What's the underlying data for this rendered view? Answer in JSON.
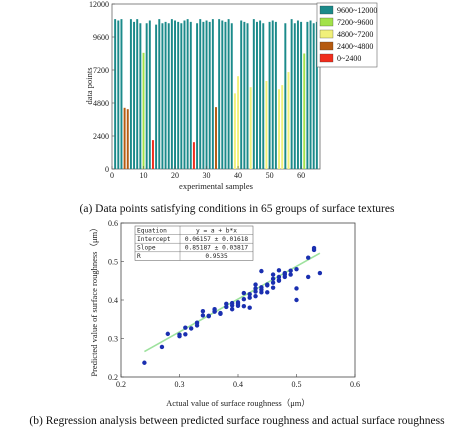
{
  "chart_data": [
    {
      "type": "bar",
      "ylabel": "data points",
      "xlabel": "experimental samples",
      "ylim": [
        0,
        12000
      ],
      "xlim": [
        0,
        66
      ],
      "yticks": [
        "0",
        "2400",
        "4800",
        "7200",
        "9600",
        "12000"
      ],
      "xticks": [
        "0",
        "10",
        "20",
        "30",
        "40",
        "50",
        "60"
      ],
      "legend_position": "top-right",
      "legend": [
        {
          "label": "9600~12000",
          "color": "#1b8a8a"
        },
        {
          "label": "7200~9600",
          "color": "#a2e24a"
        },
        {
          "label": "4800~7200",
          "color": "#f1f07a"
        },
        {
          "label": "2400~4800",
          "color": "#b55a10"
        },
        {
          "label": "0~2400",
          "color": "#f02d1d"
        }
      ],
      "x": [
        1,
        2,
        3,
        4,
        5,
        6,
        7,
        8,
        9,
        10,
        11,
        12,
        13,
        14,
        15,
        16,
        17,
        18,
        19,
        20,
        21,
        22,
        23,
        24,
        25,
        26,
        27,
        28,
        29,
        30,
        31,
        32,
        33,
        34,
        35,
        36,
        37,
        38,
        39,
        40,
        41,
        42,
        43,
        44,
        45,
        46,
        47,
        48,
        49,
        50,
        51,
        52,
        53,
        54,
        55,
        56,
        57,
        58,
        59,
        60,
        61,
        62,
        63,
        64,
        65
      ],
      "values": [
        10900,
        10800,
        10900,
        4450,
        4350,
        10900,
        10700,
        10900,
        10600,
        8450,
        10600,
        10800,
        2100,
        10500,
        10900,
        10600,
        10700,
        10600,
        10900,
        10800,
        10700,
        10600,
        10800,
        10900,
        10700,
        1950,
        10600,
        10900,
        10700,
        10800,
        10700,
        10900,
        4500,
        10900,
        10800,
        10700,
        10900,
        10600,
        5500,
        6750,
        10800,
        10700,
        10600,
        5950,
        10900,
        10700,
        10800,
        10600,
        6400,
        10700,
        10800,
        10700,
        5800,
        6100,
        10600,
        7050,
        10900,
        10600,
        10800,
        10700,
        8400,
        10700,
        10800,
        10600,
        10700
      ]
    },
    {
      "type": "scatter",
      "xlabel": "Actual value of surface roughness（μm）",
      "ylabel": "Predicted value of surface roughness（μm）",
      "xlim": [
        0.2,
        0.6
      ],
      "ylim": [
        0.2,
        0.6
      ],
      "xticks": [
        "0.2",
        "0.3",
        "0.4",
        "0.5",
        "0.6"
      ],
      "yticks": [
        "0.2",
        "0.3",
        "0.4",
        "0.5",
        "0.6"
      ],
      "fit_line": {
        "intercept": 0.06157,
        "slope": 0.85187,
        "x_range": [
          0.24,
          0.54
        ]
      },
      "table": [
        [
          "Equation",
          "y = a + b*x"
        ],
        [
          "Intercept",
          "0.06157 ± 0.01618"
        ],
        [
          "Slope",
          "0.85187 ± 0.03817"
        ],
        [
          "R",
          "0.9535"
        ]
      ],
      "points": [
        [
          0.24,
          0.237
        ],
        [
          0.27,
          0.278
        ],
        [
          0.28,
          0.312
        ],
        [
          0.3,
          0.306
        ],
        [
          0.3,
          0.31
        ],
        [
          0.31,
          0.311
        ],
        [
          0.31,
          0.328
        ],
        [
          0.32,
          0.326
        ],
        [
          0.33,
          0.341
        ],
        [
          0.33,
          0.334
        ],
        [
          0.34,
          0.36
        ],
        [
          0.35,
          0.358
        ],
        [
          0.34,
          0.371
        ],
        [
          0.36,
          0.37
        ],
        [
          0.36,
          0.376
        ],
        [
          0.37,
          0.366
        ],
        [
          0.37,
          0.364
        ],
        [
          0.38,
          0.39
        ],
        [
          0.38,
          0.382
        ],
        [
          0.39,
          0.376
        ],
        [
          0.39,
          0.392
        ],
        [
          0.4,
          0.394
        ],
        [
          0.4,
          0.39
        ],
        [
          0.41,
          0.418
        ],
        [
          0.42,
          0.406
        ],
        [
          0.41,
          0.384
        ],
        [
          0.42,
          0.38
        ],
        [
          0.43,
          0.41
        ],
        [
          0.43,
          0.43
        ],
        [
          0.44,
          0.427
        ],
        [
          0.44,
          0.433
        ],
        [
          0.45,
          0.44
        ],
        [
          0.45,
          0.42
        ],
        [
          0.46,
          0.455
        ],
        [
          0.46,
          0.445
        ],
        [
          0.47,
          0.46
        ],
        [
          0.47,
          0.452
        ],
        [
          0.48,
          0.466
        ],
        [
          0.48,
          0.47
        ],
        [
          0.48,
          0.46
        ],
        [
          0.45,
          0.438
        ],
        [
          0.46,
          0.432
        ],
        [
          0.49,
          0.476
        ],
        [
          0.47,
          0.477
        ],
        [
          0.44,
          0.475
        ],
        [
          0.43,
          0.44
        ],
        [
          0.49,
          0.466
        ],
        [
          0.5,
          0.43
        ],
        [
          0.5,
          0.4
        ],
        [
          0.52,
          0.46
        ],
        [
          0.52,
          0.51
        ],
        [
          0.53,
          0.53
        ],
        [
          0.53,
          0.535
        ],
        [
          0.54,
          0.47
        ],
        [
          0.5,
          0.48
        ],
        [
          0.46,
          0.466
        ],
        [
          0.43,
          0.422
        ],
        [
          0.4,
          0.385
        ],
        [
          0.36,
          0.37
        ],
        [
          0.35,
          0.359
        ],
        [
          0.47,
          0.45
        ],
        [
          0.41,
          0.402
        ],
        [
          0.39,
          0.386
        ],
        [
          0.42,
          0.415
        ],
        [
          0.44,
          0.42
        ]
      ]
    }
  ],
  "captions": {
    "a": "(a)  Data points satisfying conditions in 65 groups of surface textures",
    "b": "(b)  Regression analysis between predicted surface roughness and actual surface roughness"
  }
}
